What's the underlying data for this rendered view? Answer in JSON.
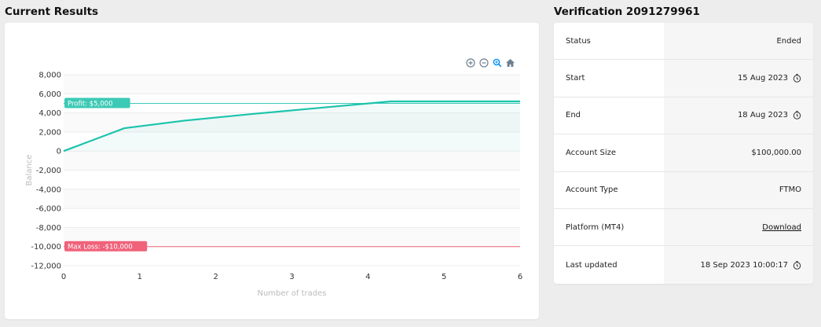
{
  "left_title": "Current Results",
  "right_title": "Verification 2091279961",
  "toolbar": {
    "icons": [
      "zoom-in-icon",
      "zoom-out-icon",
      "zoom-selection-icon",
      "home-reset-icon"
    ],
    "colors": {
      "inactive": "#6e8192",
      "active": "#008ffb"
    }
  },
  "chart_data": {
    "type": "line",
    "title": "",
    "xlabel": "Number of trades",
    "ylabel": "Balance",
    "xlim": [
      0,
      6
    ],
    "ylim": [
      -12000,
      8000
    ],
    "x_ticks": [
      "0",
      "1",
      "2",
      "3",
      "4",
      "5",
      "6"
    ],
    "y_ticks": [
      "8,000",
      "6,000",
      "4,000",
      "2,000",
      "0",
      "-2,000",
      "-4,000",
      "-6,000",
      "-8,000",
      "-10,000",
      "-12,000"
    ],
    "series": [
      {
        "name": "",
        "color": "#1cc3ad",
        "points": [
          [
            0,
            0
          ],
          [
            0.8,
            2400
          ],
          [
            1.6,
            3200
          ],
          [
            2.5,
            3900
          ],
          [
            4.3,
            5200
          ],
          [
            6,
            5200
          ]
        ]
      }
    ],
    "annotations": [
      {
        "label": "Profit: $5,000",
        "y": 5000,
        "color": "#3cc9b5"
      },
      {
        "label": "Max Loss: -$10,000",
        "y": -10000,
        "color": "#f0627a"
      }
    ],
    "grid": true
  },
  "info": {
    "rows": [
      {
        "label": "Status",
        "value": "Ended",
        "clock": false,
        "link": false
      },
      {
        "label": "Start",
        "value": "15 Aug 2023",
        "clock": true,
        "link": false
      },
      {
        "label": "End",
        "value": "18 Aug 2023",
        "clock": true,
        "link": false
      },
      {
        "label": "Account Size",
        "value": "$100,000.00",
        "clock": false,
        "link": false
      },
      {
        "label": "Account Type",
        "value": "FTMO",
        "clock": false,
        "link": false
      },
      {
        "label": "Platform (MT4)",
        "value": "Download",
        "clock": false,
        "link": true
      },
      {
        "label": "Last updated",
        "value": "18 Sep 2023 10:00:17",
        "clock": true,
        "link": false
      }
    ]
  }
}
